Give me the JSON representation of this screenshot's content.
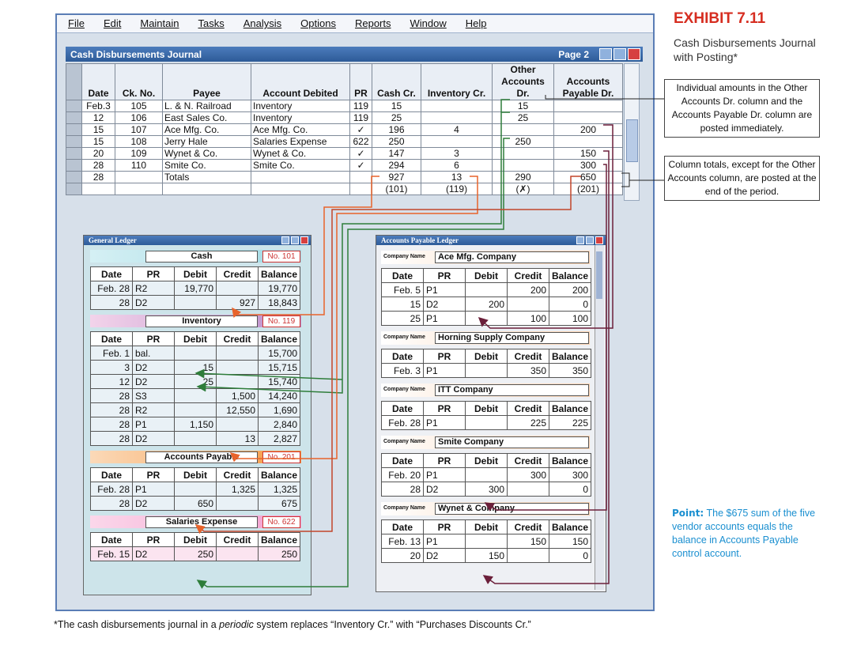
{
  "menu": [
    "File",
    "Edit",
    "Maintain",
    "Tasks",
    "Analysis",
    "Options",
    "Reports",
    "Window",
    "Help"
  ],
  "exhibit": {
    "title": "EXHIBIT 7.11",
    "subtitle": "Cash Disbursements Journal with Posting*"
  },
  "callouts": [
    "Individual amounts in the Other Accounts Dr. column and the Accounts Payable Dr. column are posted immediately.",
    "Column totals, except for the Other Accounts column, are posted at the end of the period."
  ],
  "point": {
    "label": "Point:",
    "text": "The $675 sum of the five vendor accounts equals the balance in Accounts Payable control account."
  },
  "footnote": [
    "*The cash disbursements journal in a ",
    "periodic",
    " system replaces “Inventory Cr.” with “Purchases Discounts Cr.”"
  ],
  "journal": {
    "title": "Cash Disbursements Journal",
    "page": "Page 2",
    "headers": [
      "Date",
      "Ck. No.",
      "Payee",
      "Account Debited",
      "PR",
      "Cash Cr.",
      "Inventory Cr.",
      "Other Accounts Dr.",
      "Accounts Payable Dr."
    ],
    "rows": [
      [
        "Feb.3",
        "105",
        "L. & N. Railroad",
        "Inventory",
        "119",
        "15",
        null,
        "15",
        null
      ],
      [
        "12",
        "106",
        "East Sales Co.",
        "Inventory",
        "119",
        "25",
        null,
        "25",
        null
      ],
      [
        "15",
        "107",
        "Ace Mfg. Co.",
        "Ace Mfg. Co.",
        "✓",
        "196",
        "4",
        null,
        "200"
      ],
      [
        "15",
        "108",
        "Jerry Hale",
        "Salaries Expense",
        "622",
        "250",
        null,
        "250",
        null
      ],
      [
        "20",
        "109",
        "Wynet & Co.",
        "Wynet & Co.",
        "✓",
        "147",
        "3",
        null,
        "150"
      ],
      [
        "28",
        "110",
        "Smite Co.",
        "Smite Co.",
        "✓",
        "294",
        "6",
        null,
        "300"
      ],
      [
        "28",
        null,
        "Totals",
        null,
        null,
        "927",
        "13",
        "290",
        "650"
      ],
      [
        null,
        null,
        null,
        null,
        null,
        "(101)",
        "(119)",
        "(✗)",
        "(201)"
      ]
    ]
  },
  "general_ledger": {
    "title": "General Ledger",
    "headers": [
      "Date",
      "PR",
      "Debit",
      "Credit",
      "Balance"
    ],
    "accounts": [
      {
        "name": "Cash",
        "no": "No. 101",
        "rows": [
          [
            "Feb. 28",
            "R2",
            "19,770",
            null,
            "19,770"
          ],
          [
            "28",
            "D2",
            null,
            "927",
            "18,843"
          ]
        ]
      },
      {
        "name": "Inventory",
        "no": "No. 119",
        "rows": [
          [
            "Feb.  1",
            "bal.",
            null,
            null,
            "15,700"
          ],
          [
            "3",
            "D2",
            "15",
            null,
            "15,715"
          ],
          [
            "12",
            "D2",
            "25",
            null,
            "15,740"
          ],
          [
            "28",
            "S3",
            null,
            "1,500",
            "14,240"
          ],
          [
            "28",
            "R2",
            null,
            "12,550",
            "1,690"
          ],
          [
            "28",
            "P1",
            "1,150",
            null,
            "2,840"
          ],
          [
            "28",
            "D2",
            null,
            "13",
            "2,827"
          ]
        ]
      },
      {
        "name": "Accounts Payable",
        "no": "No. 201",
        "rows": [
          [
            "Feb. 28",
            "P1",
            null,
            "1,325",
            "1,325"
          ],
          [
            "28",
            "D2",
            "650",
            null,
            "675"
          ]
        ]
      },
      {
        "name": "Salaries Expense",
        "no": "No. 622",
        "rows": [
          [
            "Feb. 15",
            "D2",
            "250",
            null,
            "250"
          ]
        ]
      }
    ]
  },
  "ap_ledger": {
    "title": "Accounts Payable Ledger",
    "company_label": "Company Name",
    "headers": [
      "Date",
      "PR",
      "Debit",
      "Credit",
      "Balance"
    ],
    "accounts": [
      {
        "name": "Ace Mfg. Company",
        "rows": [
          [
            "Feb.  5",
            "P1",
            null,
            "200",
            "200"
          ],
          [
            "15",
            "D2",
            "200",
            null,
            "0"
          ],
          [
            "25",
            "P1",
            null,
            "100",
            "100"
          ]
        ]
      },
      {
        "name": "Horning Supply Company",
        "rows": [
          [
            "Feb.  3",
            "P1",
            null,
            "350",
            "350"
          ]
        ]
      },
      {
        "name": "ITT Company",
        "rows": [
          [
            "Feb. 28",
            "P1",
            null,
            "225",
            "225"
          ]
        ]
      },
      {
        "name": "Smite Company",
        "rows": [
          [
            "Feb. 20",
            "P1",
            null,
            "300",
            "300"
          ],
          [
            "28",
            "D2",
            "300",
            null,
            "0"
          ]
        ]
      },
      {
        "name": "Wynet & Company",
        "rows": [
          [
            "Feb. 13",
            "P1",
            null,
            "150",
            "150"
          ],
          [
            "20",
            "D2",
            "150",
            null,
            "0"
          ]
        ]
      }
    ]
  }
}
